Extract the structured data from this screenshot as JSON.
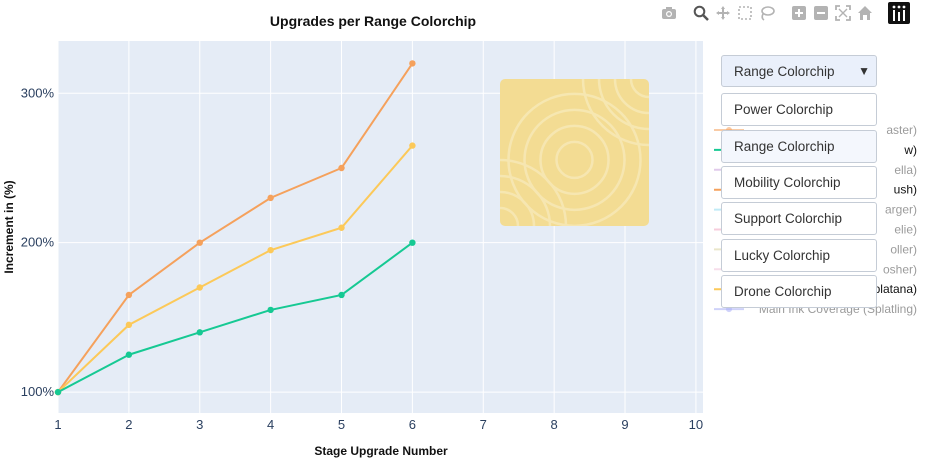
{
  "chart_data": {
    "type": "line",
    "title": "Upgrades per Range Colorchip",
    "xlabel": "Stage Upgrade Number",
    "ylabel": "Increment in (%)",
    "xlim": [
      1,
      10.1
    ],
    "ylim": [
      0.86,
      3.35
    ],
    "x_ticks": [
      1,
      2,
      3,
      4,
      5,
      6,
      7,
      8,
      9,
      10
    ],
    "y_ticks": [
      {
        "value": 1,
        "label": "100%"
      },
      {
        "value": 2,
        "label": "200%"
      },
      {
        "value": 3,
        "label": "300%"
      }
    ],
    "grid": true,
    "x": [
      1,
      2,
      3,
      4,
      5,
      6
    ],
    "series": [
      {
        "color": "#f5a15c",
        "values": [
          1.0,
          1.65,
          2.0,
          2.3,
          2.5,
          3.2
        ]
      },
      {
        "color": "#fcc959",
        "values": [
          1.0,
          1.45,
          1.7,
          1.95,
          2.1,
          2.65
        ]
      },
      {
        "color": "#16c993",
        "values": [
          1.0,
          1.25,
          1.4,
          1.55,
          1.65,
          2.0
        ]
      }
    ],
    "legend": {
      "placement": "right",
      "visible_entries": [
        {
          "text": "aster)",
          "color": "#f5a15c",
          "dimmed": true
        },
        {
          "text": "w)",
          "color": "#16c993",
          "dimmed": false
        },
        {
          "text": "ella)",
          "color": "#c9a0dc",
          "dimmed": true
        },
        {
          "text": "ush)",
          "color": "#f5a15c",
          "dimmed": false
        },
        {
          "text": "arger)",
          "color": "#8fdcef",
          "dimmed": true
        },
        {
          "text": "elie)",
          "color": "#f2a5c0",
          "dimmed": true
        },
        {
          "text": "oller)",
          "color": "#d9d3a0",
          "dimmed": true
        },
        {
          "text": "osher)",
          "color": "#f2c4dc",
          "dimmed": true
        },
        {
          "text": "Main Ink Coverage (Splatana)",
          "color": "#fcc959",
          "dimmed": false
        },
        {
          "text": "Main Ink Coverage (Splatling)",
          "color": "#a9aef5",
          "dimmed": true
        }
      ]
    }
  },
  "image": {
    "icon": "range-colorchip-icon",
    "color": "#f3dc93"
  },
  "dropdown": {
    "selected": "Range Colorchip",
    "options": [
      "Power Colorchip",
      "Range Colorchip",
      "Mobility Colorchip",
      "Support Colorchip",
      "Lucky Colorchip",
      "Drone Colorchip"
    ]
  },
  "modebar": {
    "icons": [
      "camera-icon",
      "zoom-icon",
      "pan-icon",
      "box-select-icon",
      "lasso-icon",
      "zoom-in-icon",
      "zoom-out-icon",
      "autoscale-icon",
      "reset-axes-icon",
      "plotly-logo-icon"
    ],
    "color": "#b3b3b3"
  }
}
